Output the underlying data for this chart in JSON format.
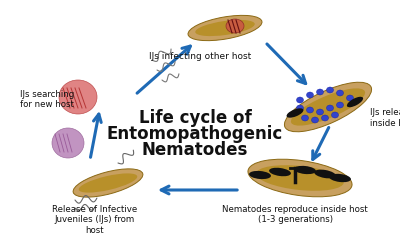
{
  "title_line1": "Life cycle of",
  "title_line2": "Entomopathogenic",
  "title_line3": "Nematodes",
  "bg_color": "#ffffff",
  "labels": {
    "top": "IJs infecting other host",
    "right": "IJs release bacteria\ninside host",
    "bottom_right": "Nematodes reproduce inside host\n(1-3 generations)",
    "bottom_left": "Release of Infective\nJuveniles (IJs) from\nhost",
    "left": "IJs searching\nfor new host"
  },
  "arrow_color": "#1f6ab5",
  "worm_color": "#c8a060",
  "worm_dark": "#8b6914",
  "worm_darker": "#5a4010"
}
